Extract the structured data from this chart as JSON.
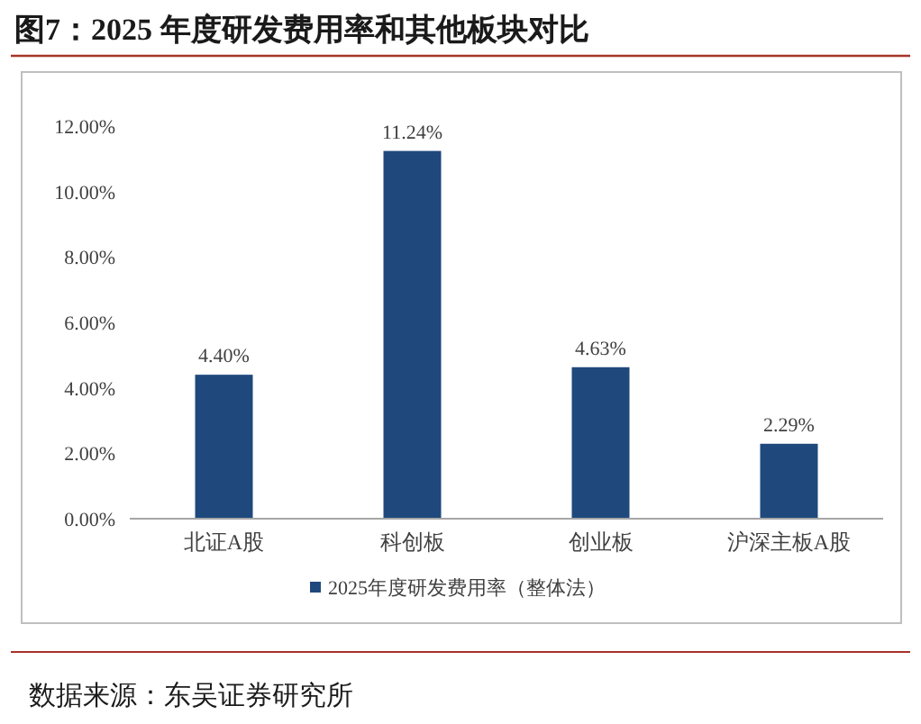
{
  "chart_data": {
    "type": "bar",
    "title": "图7：2025 年度研发费用率和其他板块对比",
    "categories": [
      "北证A股",
      "科创板",
      "创业板",
      "沪深主板A股"
    ],
    "series": [
      {
        "name": "2025年度研发费用率（整体法）",
        "color": "#1f497d",
        "values": [
          4.4,
          11.24,
          4.63,
          2.29
        ]
      }
    ],
    "value_labels": [
      "4.40%",
      "11.24%",
      "4.63%",
      "2.29%"
    ],
    "ylim": [
      0,
      12
    ],
    "yticks": [
      {
        "value": 0,
        "label": "0.00%"
      },
      {
        "value": 2,
        "label": "2.00%"
      },
      {
        "value": 4,
        "label": "4.00%"
      },
      {
        "value": 6,
        "label": "6.00%"
      },
      {
        "value": 8,
        "label": "8.00%"
      },
      {
        "value": 10,
        "label": "10.00%"
      },
      {
        "value": 12,
        "label": "12.00%"
      }
    ],
    "legend": "bottom",
    "annotations": [
      "数据来源：东吴证券研究所"
    ]
  }
}
